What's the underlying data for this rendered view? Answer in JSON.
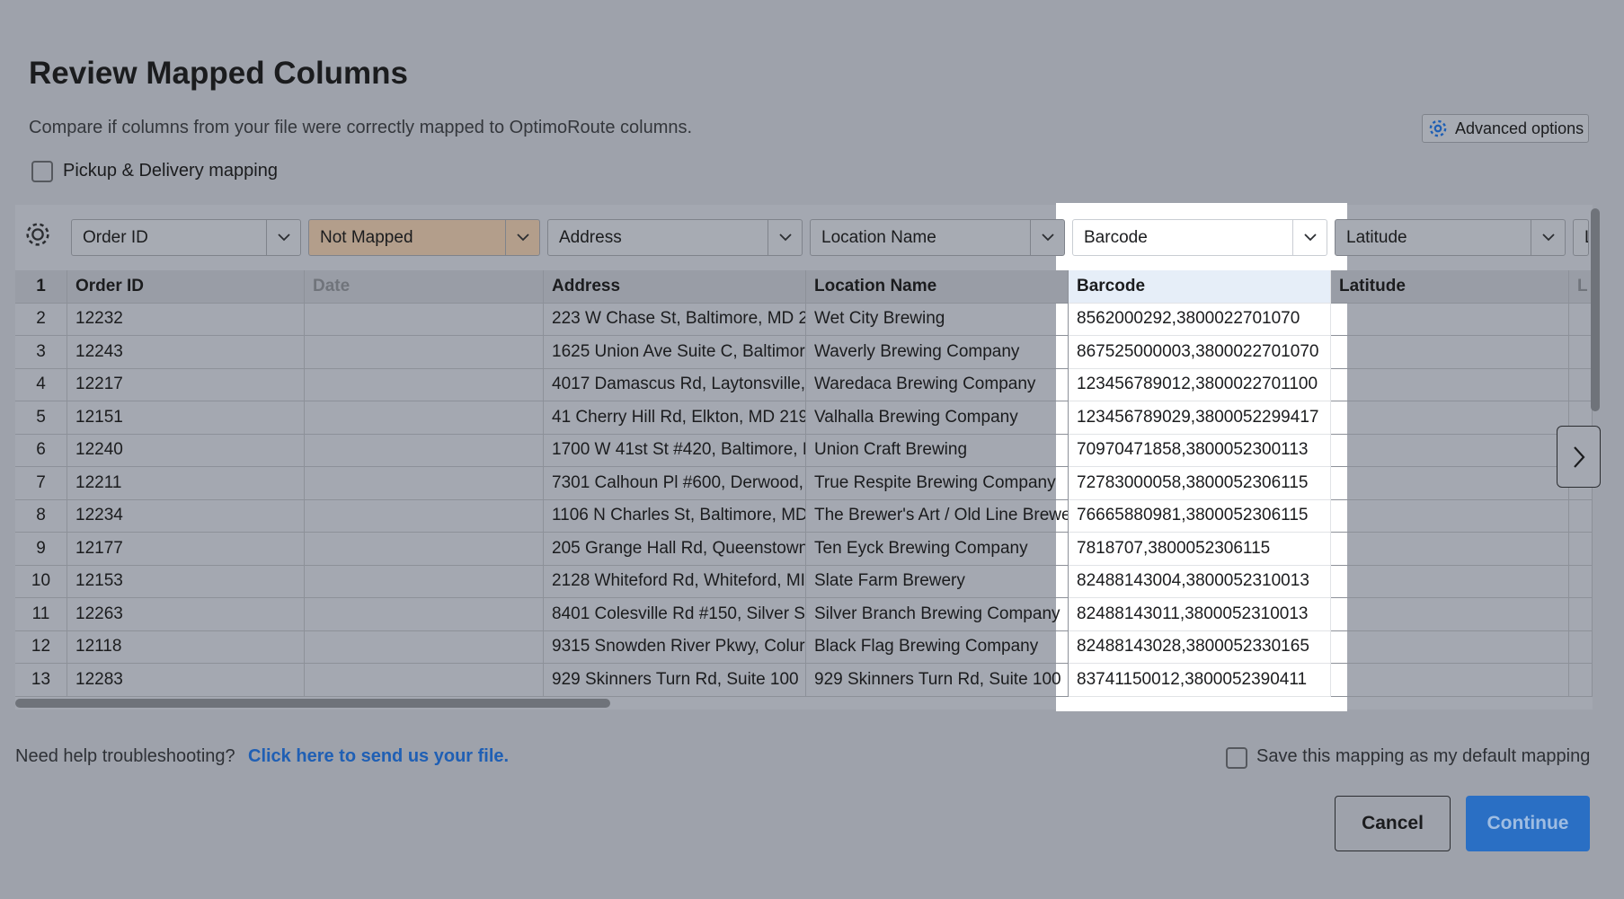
{
  "header": {
    "title": "Review Mapped Columns",
    "subtitle": "Compare if columns from your file were correctly mapped to OptimoRoute columns.",
    "advanced_options": "Advanced options"
  },
  "pickup_delivery": "Pickup & Delivery mapping",
  "table": {
    "mapping": {
      "order_id": "Order ID",
      "date": "Not Mapped",
      "address": "Address",
      "location_name": "Location Name",
      "barcode": "Barcode",
      "latitude": "Latitude",
      "extra": "L"
    },
    "header": {
      "number": "1",
      "order_id": "Order ID",
      "date": "Date",
      "address": "Address",
      "location_name": "Location Name",
      "barcode": "Barcode",
      "latitude": "Latitude",
      "extra": "L"
    },
    "rows": [
      {
        "number": "2",
        "order_id": "12232",
        "address": "223 W Chase St, Baltimore, MD 2",
        "location_name": "Wet City Brewing",
        "barcode": "8562000292,3800022701070"
      },
      {
        "number": "3",
        "order_id": "12243",
        "address": "1625 Union Ave Suite C, Baltimor",
        "location_name": "Waverly Brewing Company",
        "barcode": "867525000003,3800022701070"
      },
      {
        "number": "4",
        "order_id": "12217",
        "address": "4017 Damascus Rd, Laytonsville,",
        "location_name": "Waredaca Brewing Company",
        "barcode": "123456789012,3800022701100"
      },
      {
        "number": "5",
        "order_id": "12151",
        "address": "41 Cherry Hill Rd, Elkton, MD 219",
        "location_name": "Valhalla Brewing Company",
        "barcode": "123456789029,3800052299417"
      },
      {
        "number": "6",
        "order_id": "12240",
        "address": "1700 W 41st St #420, Baltimore, I",
        "location_name": "Union Craft Brewing",
        "barcode": "70970471858,3800052300113"
      },
      {
        "number": "7",
        "order_id": "12211",
        "address": "7301 Calhoun Pl #600, Derwood,",
        "location_name": "True Respite Brewing Company",
        "barcode": "72783000058,3800052306115"
      },
      {
        "number": "8",
        "order_id": "12234",
        "address": "1106 N Charles St, Baltimore, MD",
        "location_name": "The Brewer's Art / Old Line Brewe",
        "barcode": "76665880981,3800052306115"
      },
      {
        "number": "9",
        "order_id": "12177",
        "address": "205 Grange Hall Rd, Queenstown",
        "location_name": "Ten Eyck Brewing Company",
        "barcode": "7818707,3800052306115"
      },
      {
        "number": "10",
        "order_id": "12153",
        "address": "2128 Whiteford Rd, Whiteford, MI",
        "location_name": "Slate Farm Brewery",
        "barcode": "82488143004,3800052310013"
      },
      {
        "number": "11",
        "order_id": "12263",
        "address": "8401 Colesville Rd #150, Silver S",
        "location_name": "Silver Branch Brewing Company",
        "barcode": "82488143011,3800052310013"
      },
      {
        "number": "12",
        "order_id": "12118",
        "address": "9315 Snowden River Pkwy, Colur",
        "location_name": "Black Flag Brewing Company",
        "barcode": "82488143028,3800052330165"
      },
      {
        "number": "13",
        "order_id": "12283",
        "address": "929 Skinners Turn Rd, Suite 100",
        "location_name": "929 Skinners Turn Rd, Suite 100",
        "barcode": "83741150012,3800052390411"
      }
    ]
  },
  "footer": {
    "help": "Need help troubleshooting?",
    "link": "Click here to send us your file.",
    "save_default": "Save this mapping as my default mapping",
    "cancel": "Cancel",
    "continue": "Continue"
  }
}
